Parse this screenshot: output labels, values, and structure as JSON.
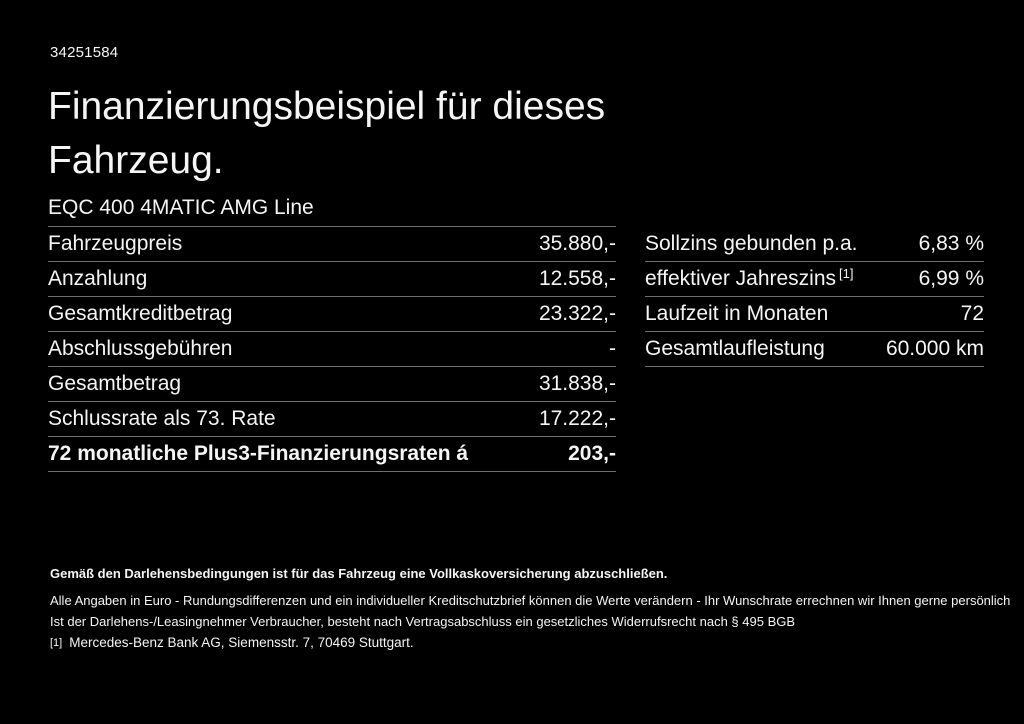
{
  "page": {
    "reference_number": "34251584",
    "title_line1": "Finanzierungsbeispiel für dieses",
    "title_line2": "Fahrzeug.",
    "vehicle_name": "EQC 400 4MATIC AMG Line"
  },
  "finance_table": {
    "rows": [
      {
        "label": "Fahrzeugpreis",
        "value": "35.880,-"
      },
      {
        "label": "Anzahlung",
        "value": "12.558,-"
      },
      {
        "label": "Gesamtkreditbetrag",
        "value": "23.322,-"
      },
      {
        "label": "Abschlussgebühren",
        "value": "-"
      },
      {
        "label": "Gesamtbetrag",
        "value": "31.838,-"
      },
      {
        "label": "Schlussrate als 73. Rate",
        "value": "17.222,-"
      },
      {
        "label": "72 monatliche Plus3-Finanzierungsraten á",
        "value": "203,-"
      }
    ]
  },
  "conditions_table": {
    "rows": [
      {
        "label": "Sollzins gebunden p.a.",
        "value": "6,83 %"
      },
      {
        "label": "effektiver Jahreszins",
        "superscript": "[1]",
        "value": "6,99 %"
      },
      {
        "label": "Laufzeit in Monaten",
        "value": "72"
      },
      {
        "label": "Gesamtlaufleistung",
        "value": "60.000 km"
      }
    ]
  },
  "footer": {
    "insurance_note_bold": "Gemäß den Darlehensbedingungen ist für das Fahrzeug eine Vollkaskoversicherung abzuschließen.",
    "note_line1": "Alle Angaben in Euro - Rundungsdifferenzen und ein individueller Kreditschutzbrief können die Werte verändern - Ihr Wunschrate errechnen wir Ihnen gerne persönlich",
    "note_line2": "Ist der Darlehens-/Leasingnehmer Verbraucher, besteht nach Vertragsabschluss ein gesetzliches Widerrufsrecht nach § 495 BGB",
    "footnote_marker": "[1]",
    "footnote_text": "Mercedes-Benz Bank AG, Siemensstr. 7, 70469 Stuttgart."
  },
  "colors": {
    "background": "#000000",
    "text": "#f5f5f5",
    "divider": "#6e6e6e"
  }
}
